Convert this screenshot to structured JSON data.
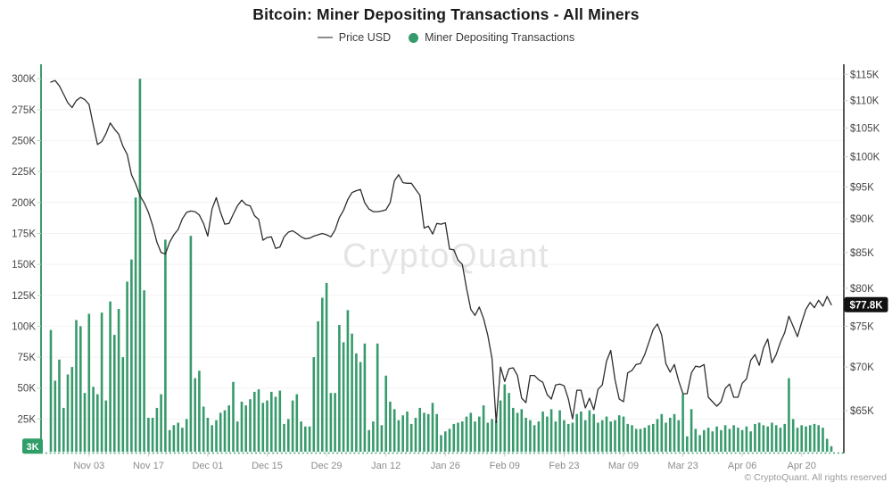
{
  "title": "Bitcoin: Miner Depositing Transactions - All Miners",
  "legend": [
    {
      "label": "Price USD",
      "type": "line",
      "color": "#8c8c8c"
    },
    {
      "label": "Miner Depositing Transactions",
      "type": "dot",
      "color": "#379a6b"
    }
  ],
  "watermark": "CryptoQuant",
  "copyright": "© CryptoQuant. All rights reserved",
  "colors": {
    "bar": "#379a6b",
    "price_line": "#2e2e2e",
    "left_axis_line": "#3a9c6e",
    "right_axis_line": "#1f1f1f",
    "bottom_axis_dashed": "#49a477",
    "grid": "#f2f2f2",
    "tick": "#c9c9c9",
    "y_label": "#454545",
    "x_label": "#8c8c8c",
    "left_badge_bg": "#2f9e68",
    "left_badge_text": "#ffffff",
    "right_badge_bg": "#111111",
    "right_badge_text": "#ffffff",
    "watermark": "#e4e4e4"
  },
  "left_axis": {
    "title": "Miner Depositing Transactions",
    "scale": "linear",
    "tick_labels": [
      "300K",
      "275K",
      "250K",
      "225K",
      "200K",
      "175K",
      "150K",
      "125K",
      "100K",
      "75K",
      "50K",
      "25K"
    ],
    "tick_values": [
      300,
      275,
      250,
      225,
      200,
      175,
      150,
      125,
      100,
      75,
      50,
      25
    ],
    "min": 0,
    "max": 310,
    "current_badge": {
      "label": "3K",
      "value": 3
    }
  },
  "right_axis": {
    "title": "Price USD",
    "scale": "log",
    "tick_labels": [
      "$115K",
      "$110K",
      "$105K",
      "$100K",
      "$95K",
      "$90K",
      "$85K",
      "$80K",
      "$75K",
      "$70K",
      "$65K"
    ],
    "tick_values": [
      115,
      110,
      105,
      100,
      95,
      90,
      85,
      80,
      75,
      70,
      65
    ],
    "current_badge": {
      "label": "$77.8K",
      "value": 77.8
    }
  },
  "x_axis": {
    "tick_labels": [
      {
        "label": "Nov 03",
        "day": 9
      },
      {
        "label": "Nov 17",
        "day": 23
      },
      {
        "label": "Dec 01",
        "day": 37
      },
      {
        "label": "Dec 15",
        "day": 51
      },
      {
        "label": "Dec 29",
        "day": 65
      },
      {
        "label": "Jan 12",
        "day": 79
      },
      {
        "label": "Jan 26",
        "day": 93
      },
      {
        "label": "Feb 09",
        "day": 107
      },
      {
        "label": "Feb 23",
        "day": 121
      },
      {
        "label": "Mar 09",
        "day": 135
      },
      {
        "label": "Mar 23",
        "day": 149
      },
      {
        "label": "Apr 06",
        "day": 163
      },
      {
        "label": "Apr 20",
        "day": 177
      }
    ]
  },
  "chart_data": {
    "type": "combo",
    "start_date": "Oct 25",
    "days": 185,
    "grid": "horizontal-only",
    "legend_position": "top-center",
    "series": [
      {
        "name": "Miner Depositing Transactions",
        "type": "bar",
        "axis": "left",
        "unit": "K transactions",
        "values": [
          97,
          56,
          73,
          34,
          61,
          67,
          105,
          100,
          46,
          110,
          51,
          45,
          111,
          40,
          120,
          93,
          114,
          75,
          136,
          154,
          204,
          300,
          129,
          26,
          26,
          34,
          45,
          170,
          16,
          20,
          22,
          18,
          25,
          173,
          58,
          64,
          35,
          26,
          20,
          24,
          30,
          32,
          36,
          55,
          23,
          39,
          36,
          41,
          47,
          49,
          38,
          40,
          47,
          43,
          48,
          21,
          25,
          40,
          45,
          23,
          19,
          19,
          75,
          104,
          123,
          135,
          46,
          46,
          101,
          87,
          113,
          94,
          78,
          71,
          86,
          16,
          23,
          86,
          20,
          60,
          39,
          33,
          24,
          28,
          31,
          21,
          26,
          34,
          30,
          29,
          38,
          29,
          12,
          15,
          17,
          21,
          22,
          23,
          27,
          30,
          23,
          27,
          36,
          22,
          25,
          24,
          40,
          53,
          46,
          34,
          30,
          33,
          26,
          24,
          20,
          23,
          31,
          27,
          33,
          23,
          32,
          24,
          21,
          22,
          29,
          31,
          24,
          32,
          29,
          22,
          24,
          27,
          23,
          24,
          28,
          27,
          21,
          20,
          17,
          17,
          18,
          20,
          21,
          25,
          29,
          22,
          26,
          29,
          24,
          45,
          11,
          33,
          17,
          12,
          16,
          18,
          15,
          19,
          16,
          20,
          17,
          20,
          18,
          16,
          19,
          15,
          21,
          22,
          20,
          19,
          22,
          20,
          18,
          21,
          58,
          25,
          18,
          20,
          19,
          20,
          21,
          20,
          18,
          9,
          3
        ]
      },
      {
        "name": "Price USD",
        "type": "line",
        "axis": "right",
        "unit": "K USD",
        "values": [
          113.5,
          113.8,
          112.8,
          111.2,
          109.6,
          108.7,
          110.0,
          110.6,
          110.2,
          109.3,
          105.5,
          102.1,
          102.6,
          104.0,
          105.9,
          104.8,
          103.9,
          101.8,
          100.4,
          97.0,
          95.5,
          93.6,
          92.5,
          91.0,
          89.0,
          86.5,
          85.0,
          84.8,
          86.5,
          87.6,
          88.4,
          90.0,
          91.0,
          91.2,
          91.1,
          90.6,
          89.3,
          87.4,
          91.5,
          93.3,
          91.0,
          89.2,
          89.3,
          90.7,
          92.0,
          92.9,
          92.2,
          92.0,
          90.5,
          89.9,
          86.8,
          87.2,
          87.3,
          85.6,
          85.8,
          87.3,
          88.0,
          88.2,
          87.8,
          87.3,
          87.0,
          87.1,
          87.4,
          87.6,
          87.8,
          87.6,
          87.3,
          88.3,
          90.2,
          91.3,
          93.0,
          94.1,
          94.4,
          94.6,
          92.5,
          91.5,
          91.1,
          91.1,
          91.2,
          91.4,
          92.5,
          96.0,
          97.0,
          95.7,
          95.6,
          95.6,
          94.6,
          93.7,
          88.6,
          88.9,
          87.7,
          89.3,
          89.2,
          89.4,
          85.5,
          85.4,
          83.9,
          83.3,
          80.0,
          77.2,
          76.4,
          77.5,
          76.0,
          73.9,
          71.0,
          63.7,
          70.0,
          68.3,
          69.8,
          69.9,
          69.0,
          66.4,
          65.9,
          69.0,
          69.0,
          68.5,
          68.2,
          66.8,
          66.3,
          67.9,
          68.0,
          67.8,
          66.3,
          64.1,
          67.3,
          67.3,
          65.3,
          66.4,
          65.1,
          67.4,
          67.9,
          70.7,
          72.0,
          68.5,
          66.3,
          66.0,
          69.3,
          69.6,
          70.3,
          70.4,
          71.5,
          73.0,
          74.6,
          75.3,
          73.9,
          70.4,
          69.4,
          70.3,
          68.4,
          66.9,
          66.9,
          69.3,
          70.1,
          70.0,
          70.3,
          66.5,
          66.0,
          65.5,
          66.0,
          67.5,
          68.0,
          66.5,
          66.5,
          68.1,
          68.6,
          70.8,
          71.5,
          70.2,
          72.3,
          73.4,
          70.5,
          71.5,
          73.0,
          74.2,
          76.3,
          75.0,
          73.7,
          75.5,
          77.2,
          78.1,
          77.4,
          78.4,
          77.6,
          78.9,
          77.8
        ]
      }
    ]
  }
}
